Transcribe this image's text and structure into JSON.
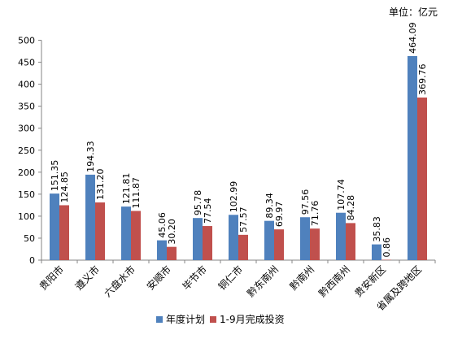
{
  "chart_data": {
    "type": "bar",
    "unit_label": "单位：亿元",
    "categories": [
      "贵阳市",
      "遵义市",
      "六盘水市",
      "安顺市",
      "毕节市",
      "铜仁市",
      "黔东南州",
      "黔南州",
      "黔西南州",
      "贵安新区",
      "省属及跨地区"
    ],
    "series": [
      {
        "name": "年度计划",
        "color": "#4F81BD",
        "values": [
          151.35,
          194.33,
          121.81,
          45.06,
          95.78,
          102.99,
          89.34,
          97.56,
          107.74,
          35.83,
          464.09
        ],
        "labels": [
          "151.35",
          "194.33",
          "121.81",
          "45.06",
          "95.78",
          "102.99",
          "89.34",
          "97.56",
          "107.74",
          "35.83",
          "464.09"
        ]
      },
      {
        "name": "1-9月完成投资",
        "color": "#C0504D",
        "values": [
          124.85,
          131.2,
          111.87,
          30.2,
          77.54,
          57.57,
          69.97,
          71.76,
          84.28,
          0.86,
          369.76
        ],
        "labels": [
          "124.85",
          "131.20",
          "111.87",
          "30.20",
          "77.54",
          "57.57",
          "69.97",
          "71.76",
          "84.28",
          "0.86",
          "369.76"
        ]
      }
    ],
    "yticks": [
      0,
      50,
      100,
      150,
      200,
      250,
      300,
      350,
      400,
      450,
      500
    ],
    "ylim": [
      0,
      500
    ],
    "legend_position": "bottom",
    "grid": false
  }
}
